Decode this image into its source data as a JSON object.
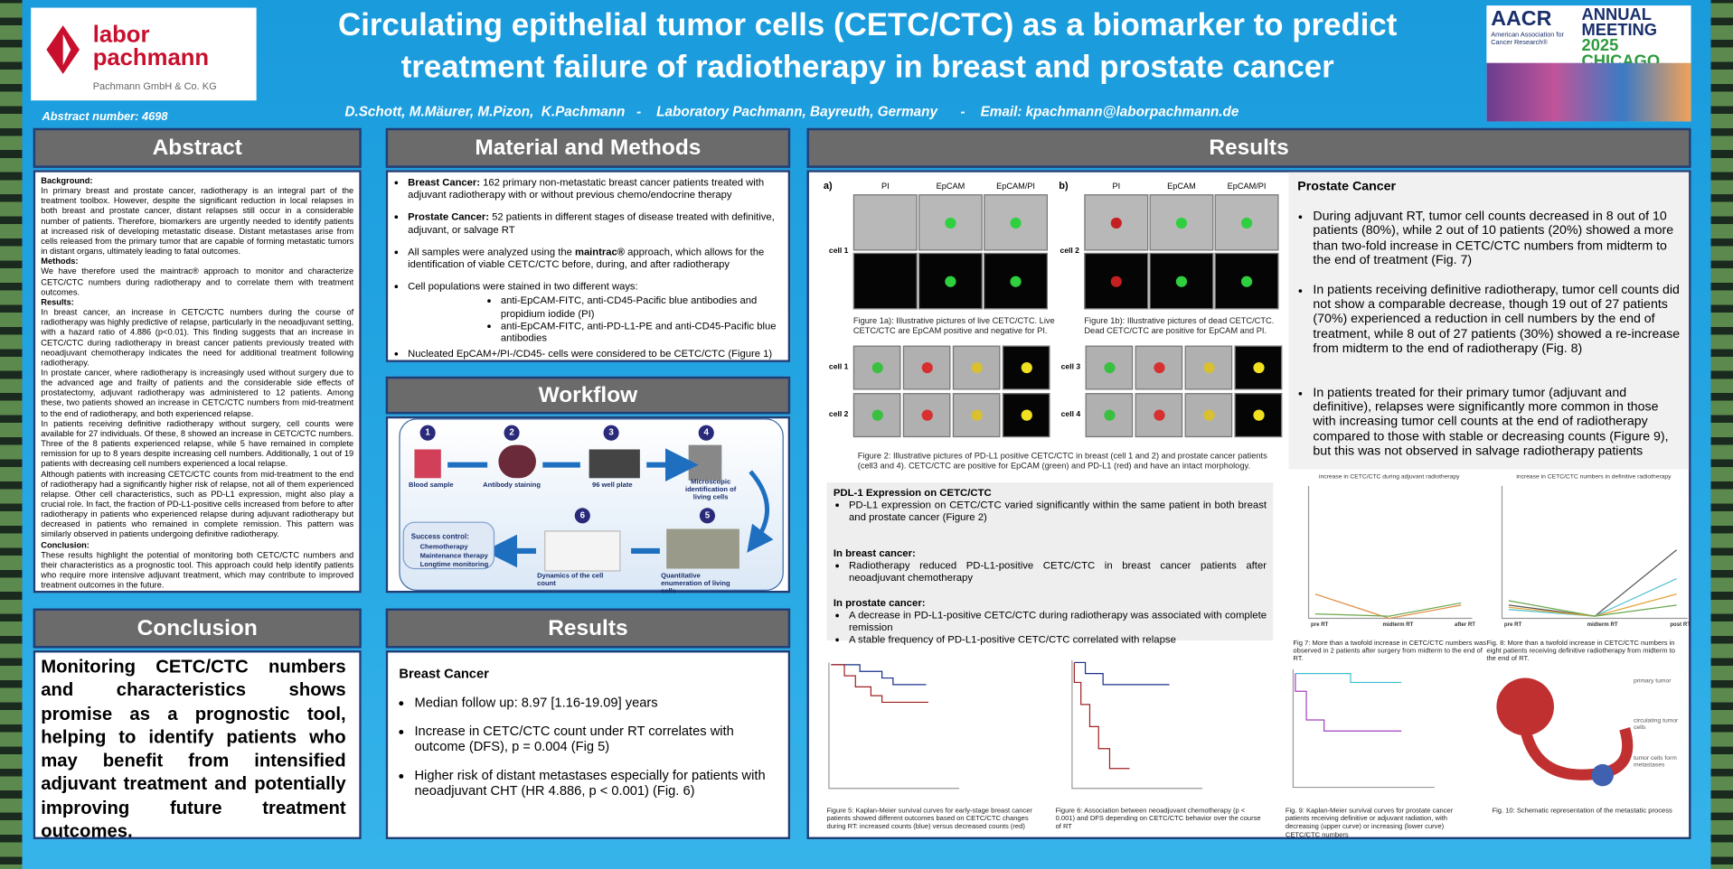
{
  "header": {
    "logo": {
      "line1": "labor",
      "line2": "pachmann",
      "sub": "Pachmann GmbH & Co. KG"
    },
    "title": "Circulating epithelial tumor cells (CETC/CTC) as a biomarker to predict treatment failure of radiotherapy in breast and prostate cancer",
    "abstract_number": "Abstract number: 4698",
    "authors": "D.Schott, M.Mäurer, M.Pizon,  K.Pachmann   -    Laboratory Pachmann, Bayreuth, Germany      -    Email: kpachmann@laborpachmann.de",
    "conference": {
      "org": "AACR",
      "org_full": "American Association for Cancer Research®",
      "line1": "ANNUAL",
      "line2": "MEETING",
      "line3": "2025 CHICAGO"
    }
  },
  "abstract": {
    "title": "Abstract",
    "background_heading": "Background:",
    "background": "In primary breast and prostate cancer, radiotherapy is an integral part of the treatment toolbox. However, despite the significant reduction in local relapses in both breast and prostate cancer, distant relapses still occur in a considerable number of patients. Therefore, biomarkers are urgently needed to identify patients at increased risk of developing metastatic disease. Distant metastases arise from cells released from the primary tumor that are capable of forming metastatic tumors in distant organs, ultimately leading to fatal outcomes.",
    "methods_heading": "Methods:",
    "methods": "We have therefore used the maintrac® approach to monitor and characterize CETC/CTC numbers during radiotherapy and to correlate them with treatment outcomes.",
    "results_heading": "Results:",
    "results": [
      "In breast cancer, an increase in CETC/CTC numbers during the course of radiotherapy was highly predictive of relapse, particularly in the neoadjuvant setting, with a hazard ratio of 4.886 (p<0.01). This finding suggests that an increase in CETC/CTC during radiotherapy in breast cancer patients previously treated with neoadjuvant chemotherapy indicates the need for additional treatment following radiotherapy.",
      "In prostate cancer, where radiotherapy is increasingly used without surgery due to the advanced age and frailty of patients and the considerable side effects of prostatectomy, adjuvant radiotherapy was administered to 12 patients. Among these, two patients showed an increase in CETC/CTC numbers from mid-treatment to the end of radiotherapy, and both experienced relapse.",
      "In patients receiving definitive radiotherapy without surgery, cell counts were available for 27 individuals. Of these, 8 showed an increase in CETC/CTC numbers. Three of the 8 patients experienced relapse, while 5 have remained in complete remission for up to 8 years despite increasing cell numbers. Additionally, 1 out of 19 patients with decreasing cell numbers experienced a local relapse.",
      "Although patients with increasing CETC/CTC counts from mid-treatment to the end of radiotherapy had a significantly higher risk of relapse, not all of them experienced relapse. Other cell characteristics, such as PD-L1 expression, might also play a crucial role. In fact, the fraction of PD-L1-positive cells increased from before to after radiotherapy in patients who experienced relapse during adjuvant radiotherapy but decreased in patients who remained in complete remission. This pattern was similarly observed in patients undergoing definitive radiotherapy."
    ],
    "conclusion_heading": "Conclusion:",
    "conclusion": "These results highlight the potential of monitoring both CETC/CTC numbers and their characteristics as a prognostic tool. This approach could help identify patients who require more intensive adjuvant treatment, which may contribute to improved treatment outcomes in the future."
  },
  "methods": {
    "title": "Material and Methods",
    "items": [
      {
        "label": "Breast Cancer:",
        "text": " 162 primary non-metastatic breast cancer patients treated with adjuvant radiotherapy with or without previous chemo/endocrine therapy"
      },
      {
        "label": "Prostate Cancer:",
        "text": " 52 patients in different stages of disease treated with definitive, adjuvant, or salvage RT"
      }
    ],
    "maintrac": [
      "All samples were analyzed using the ",
      "maintrac®",
      " approach, which allows for the identification of viable CETC/CTC before, during, and after radiotherapy"
    ],
    "staining": "Cell populations were stained in two different ways:",
    "staining_items": [
      "anti-EpCAM-FITC, anti-CD45-Pacific blue antibodies and propidium iodide (PI)",
      "anti-EpCAM-FITC, anti-PD-L1-PE and anti-CD45-Pacific blue antibodies"
    ],
    "definition": "Nucleated EpCAM+/PI-/CD45- cells were considered to be CETC/CTC (Figure 1)"
  },
  "workflow": {
    "title": "Workflow",
    "steps": [
      {
        "number": "1",
        "label": "Blood sample"
      },
      {
        "number": "2",
        "label": "Antibody staining"
      },
      {
        "number": "3",
        "label": "96 well plate"
      },
      {
        "number": "4",
        "label": "Microscopic identification of living cells"
      },
      {
        "number": "5",
        "label": "Quantitative enumeration of living cells"
      },
      {
        "number": "6",
        "label": "Dynamics of the cell count"
      }
    ],
    "success_heading": "Success control:",
    "success_items": [
      "Chemotherapy",
      "Maintenance therapy",
      "Longtime monitoring"
    ]
  },
  "conclusion": {
    "title": "Conclusion",
    "text": "Monitoring CETC/CTC numbers and characteristics shows promise as a prognostic tool, helping to identify patients who may benefit from intensified adjuvant treatment and potentially improving future treatment outcomes."
  },
  "results_breast": {
    "title": "Results",
    "heading": "Breast Cancer",
    "items": [
      "Median follow up: 8.97 [1.16-19.09] years",
      "Increase in CETC/CTC count under RT correlates with outcome (DFS), p = 0.004 (Fig 5)",
      "Higher risk of distant metastases especially for patients with neoadjuvant CHT (HR 4.886, p < 0.001) (Fig. 6)"
    ]
  },
  "results": {
    "title": "Results",
    "fig1a": {
      "tag": "a)",
      "columns": [
        "PI",
        "EpCAM",
        "EpCAM/PI"
      ],
      "row": "cell 1",
      "caption": "Figure 1a): Illustrative pictures of live CETC/CTC. Live CETC/CTC are EpCAM positive and negative for PI."
    },
    "fig1b": {
      "tag": "b)",
      "columns": [
        "PI",
        "EpCAM",
        "EpCAM/PI"
      ],
      "row": "cell 2",
      "caption": "Figure 1b): Illustrative pictures of dead CETC/CTC. Dead CETC/CTC are positive for EpCAM and PI."
    },
    "fig2": {
      "rows": [
        "cell 1",
        "cell 2",
        "cell 3",
        "cell 4"
      ],
      "caption": "Figure 2: Illustrative pictures of PD-L1 positive  CETC/CTC in breast (cell 1 and 2) and prostate cancer patients (cell3 and 4). CETC/CTC are positive for EpCAM (green) and PD-L1 (red) and have an intact morphology."
    },
    "prostate": {
      "heading": "Prostate Cancer",
      "items": [
        "During adjuvant RT, tumor cell counts decreased in 8 out of 10 patients (80%), while 2 out of 10 patients (20%) showed a more than two-fold increase in CETC/CTC numbers from midterm to the end of treatment (Fig. 7)",
        "In patients receiving definitive radiotherapy, tumor cell counts did not show a comparable decrease, though 19 out of 27 patients (70%) experienced a reduction in cell numbers by the end of treatment, while 8 out of 27 patients (30%) showed a re-increase from midterm to the end of radiotherapy (Fig. 8)",
        "In patients treated for their primary tumor (adjuvant and definitive), relapses were significantly more common in those with increasing tumor cell counts at the end of radiotherapy compared to those with stable or decreasing counts (Figure 9), but this was not observed in salvage radiotherapy patients"
      ]
    },
    "pdl1": {
      "heading": "PDL-1 Expression on CETC/CTC",
      "items": [
        "PD-L1 expression on CETC/CTC varied significantly within the same patient in both breast and prostate cancer (Figure 2)"
      ],
      "breast_heading": "In breast cancer:",
      "breast_items": [
        "Radiotherapy reduced PD-L1-positive CETC/CTC in breast cancer patients after neoadjuvant chemotherapy"
      ],
      "prostate_heading": "In prostate cancer:",
      "prostate_items": [
        "A decrease in PD-L1-positive CETC/CTC during radiotherapy was associated with complete remission",
        "A stable frequency of PD-L1-positive CETC/CTC correlated with relapse"
      ]
    },
    "fig7": {
      "title": "increase in CETC/CTC during adjuvant radiotherapy",
      "x": [
        "pre RT",
        "midterm RT",
        "after RT"
      ],
      "caption": "Fig 7: More than a twofold increase in CETC/CTC numbers was observed in 2 patients after surgery from midterm to the end of RT."
    },
    "fig8": {
      "title": "increase in CETC/CTC numbers in definitive radiotherapy",
      "x": [
        "pre RT",
        "midterm RT",
        "post RT"
      ],
      "caption": "Fig. 8:  More than a twofold increase in CETC/CTC numbers in eight patients receiving definitive radiotherapy from midterm to the end of RT."
    },
    "fig5": {
      "caption": "Figure 5: Kaplan-Meier survival curves for early-stage breast cancer patients showed different outcomes based on CETC/CTC changes during RT: increased counts (blue) versus decreased counts (red)"
    },
    "fig6": {
      "caption": "Figure 6: Association between neoadjuvant chemotherapy (p < 0.001) and DFS depending on CETC/CTC behavior over the course of RT"
    },
    "fig9": {
      "caption": "Fig. 9: Kaplan-Meier survival curves for prostate cancer patients receiving definitive or adjuvant radiation, with decreasing (upper curve) or increasing (lower curve) CETC/CTC numbers"
    },
    "fig10": {
      "labels": [
        "primary tumor",
        "circulating tumor cells",
        "tumor cells form metastases"
      ],
      "caption": "Fig. 10: Schematic representation of the metastatic process"
    }
  }
}
